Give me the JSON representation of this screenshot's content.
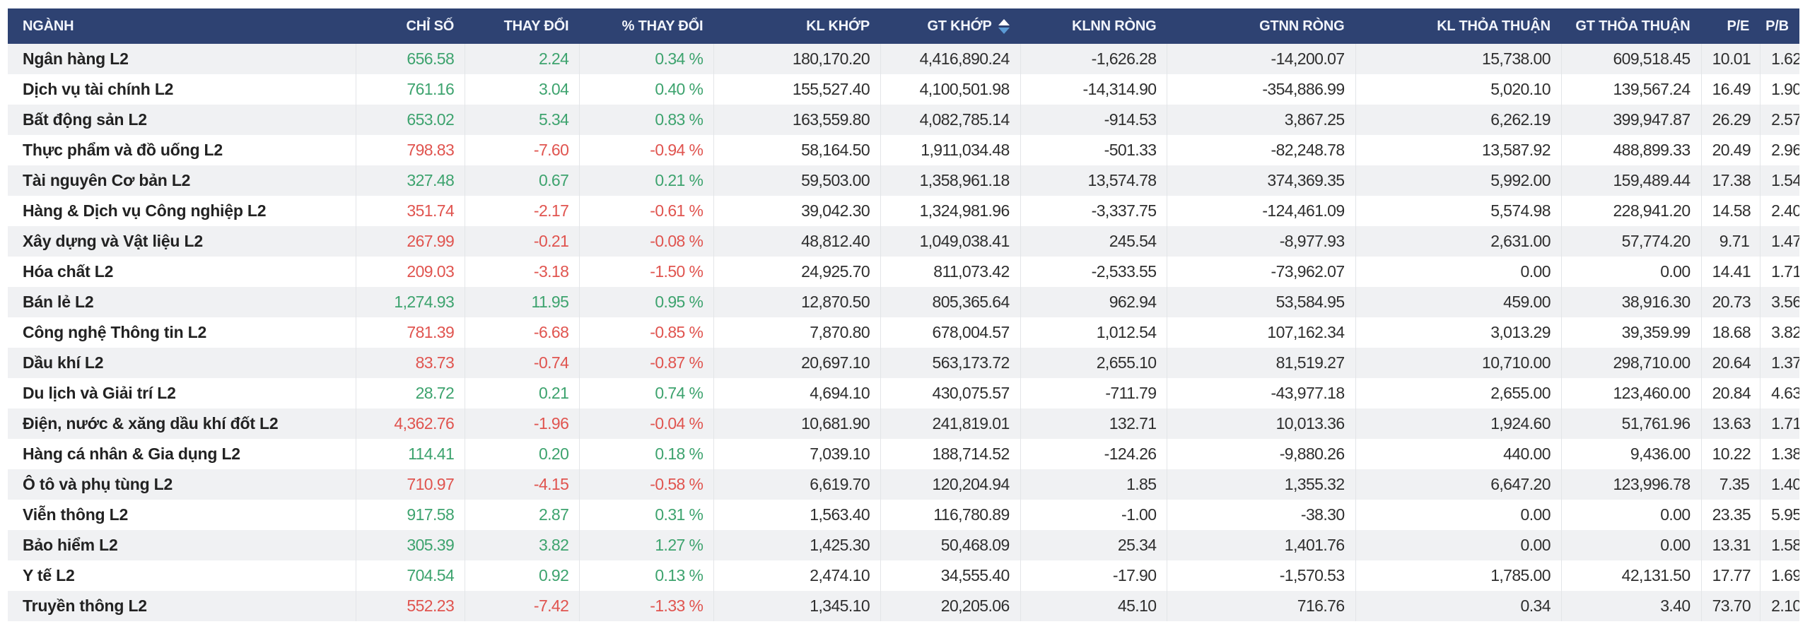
{
  "colors": {
    "header_bg": "#2e4272",
    "header_text": "#f2f5fc",
    "stripe": "#f0f1f3",
    "row_white": "#ffffff",
    "positive": "#3da36e",
    "negative": "#e0544f",
    "number_text": "#2e2e2e",
    "name_text": "#222222",
    "separator": "#e3e5e8",
    "sort_up": "#ffffff",
    "sort_down": "#5b9bd5"
  },
  "table": {
    "sort": {
      "column": "gt_khop",
      "indicator": "up-down-arrows"
    },
    "columns": [
      {
        "key": "nganh",
        "label": "NGÀNH",
        "align": "left",
        "width": 19.4,
        "type": "name"
      },
      {
        "key": "chi_so",
        "label": "CHỈ SỐ",
        "align": "right",
        "width": 6.1,
        "type": "signed"
      },
      {
        "key": "thay_doi",
        "label": "THAY ĐỔI",
        "align": "right",
        "width": 6.4,
        "type": "signed"
      },
      {
        "key": "pct_thay_doi",
        "label": "% THAY ĐỔI",
        "align": "right",
        "width": 7.5,
        "type": "signed"
      },
      {
        "key": "kl_khop",
        "label": "KL KHỚP",
        "align": "right",
        "width": 9.3,
        "type": "plain"
      },
      {
        "key": "gt_khop",
        "label": "GT KHỚP",
        "align": "right",
        "width": 7.8,
        "type": "plain",
        "sorted": true
      },
      {
        "key": "klnn_rong",
        "label": "KLNN RÒNG",
        "align": "right",
        "width": 8.2,
        "type": "plain"
      },
      {
        "key": "gtnn_rong",
        "label": "GTNN RÒNG",
        "align": "right",
        "width": 10.5,
        "type": "plain"
      },
      {
        "key": "kl_thoa_thuan",
        "label": "KL THỎA THUẬN",
        "align": "right",
        "width": 11.5,
        "type": "plain"
      },
      {
        "key": "gt_thoa_thuan",
        "label": "GT THỎA THUẬN",
        "align": "right",
        "width": 7.8,
        "type": "plain"
      },
      {
        "key": "pe",
        "label": "P/E",
        "align": "right",
        "width": 3.3,
        "type": "plain"
      },
      {
        "key": "pb",
        "label": "P/B",
        "align": "right",
        "width": 2.2,
        "type": "plain"
      }
    ],
    "rows": [
      {
        "trend": "up",
        "cells": {
          "nganh": "Ngân hàng L2",
          "chi_so": "656.58",
          "thay_doi": "2.24",
          "pct_thay_doi": "0.34 %",
          "kl_khop": "180,170.20",
          "gt_khop": "4,416,890.24",
          "klnn_rong": "-1,626.28",
          "gtnn_rong": "-14,200.07",
          "kl_thoa_thuan": "15,738.00",
          "gt_thoa_thuan": "609,518.45",
          "pe": "10.01",
          "pb": "1.62"
        }
      },
      {
        "trend": "up",
        "cells": {
          "nganh": "Dịch vụ tài chính L2",
          "chi_so": "761.16",
          "thay_doi": "3.04",
          "pct_thay_doi": "0.40 %",
          "kl_khop": "155,527.40",
          "gt_khop": "4,100,501.98",
          "klnn_rong": "-14,314.90",
          "gtnn_rong": "-354,886.99",
          "kl_thoa_thuan": "5,020.10",
          "gt_thoa_thuan": "139,567.24",
          "pe": "16.49",
          "pb": "1.90"
        }
      },
      {
        "trend": "up",
        "cells": {
          "nganh": "Bất động sản L2",
          "chi_so": "653.02",
          "thay_doi": "5.34",
          "pct_thay_doi": "0.83 %",
          "kl_khop": "163,559.80",
          "gt_khop": "4,082,785.14",
          "klnn_rong": "-914.53",
          "gtnn_rong": "3,867.25",
          "kl_thoa_thuan": "6,262.19",
          "gt_thoa_thuan": "399,947.87",
          "pe": "26.29",
          "pb": "2.57"
        }
      },
      {
        "trend": "down",
        "cells": {
          "nganh": "Thực phẩm và đồ uống L2",
          "chi_so": "798.83",
          "thay_doi": "-7.60",
          "pct_thay_doi": "-0.94 %",
          "kl_khop": "58,164.50",
          "gt_khop": "1,911,034.48",
          "klnn_rong": "-501.33",
          "gtnn_rong": "-82,248.78",
          "kl_thoa_thuan": "13,587.92",
          "gt_thoa_thuan": "488,899.33",
          "pe": "20.49",
          "pb": "2.96"
        }
      },
      {
        "trend": "up",
        "cells": {
          "nganh": "Tài nguyên Cơ bản L2",
          "chi_so": "327.48",
          "thay_doi": "0.67",
          "pct_thay_doi": "0.21 %",
          "kl_khop": "59,503.00",
          "gt_khop": "1,358,961.18",
          "klnn_rong": "13,574.78",
          "gtnn_rong": "374,369.35",
          "kl_thoa_thuan": "5,992.00",
          "gt_thoa_thuan": "159,489.44",
          "pe": "17.38",
          "pb": "1.54"
        }
      },
      {
        "trend": "down",
        "cells": {
          "nganh": "Hàng & Dịch vụ Công nghiệp L2",
          "chi_so": "351.74",
          "thay_doi": "-2.17",
          "pct_thay_doi": "-0.61 %",
          "kl_khop": "39,042.30",
          "gt_khop": "1,324,981.96",
          "klnn_rong": "-3,337.75",
          "gtnn_rong": "-124,461.09",
          "kl_thoa_thuan": "5,574.98",
          "gt_thoa_thuan": "228,941.20",
          "pe": "14.58",
          "pb": "2.40"
        }
      },
      {
        "trend": "down",
        "cells": {
          "nganh": "Xây dựng và Vật liệu L2",
          "chi_so": "267.99",
          "thay_doi": "-0.21",
          "pct_thay_doi": "-0.08 %",
          "kl_khop": "48,812.40",
          "gt_khop": "1,049,038.41",
          "klnn_rong": "245.54",
          "gtnn_rong": "-8,977.93",
          "kl_thoa_thuan": "2,631.00",
          "gt_thoa_thuan": "57,774.20",
          "pe": "9.71",
          "pb": "1.47"
        }
      },
      {
        "trend": "down",
        "cells": {
          "nganh": "Hóa chất L2",
          "chi_so": "209.03",
          "thay_doi": "-3.18",
          "pct_thay_doi": "-1.50 %",
          "kl_khop": "24,925.70",
          "gt_khop": "811,073.42",
          "klnn_rong": "-2,533.55",
          "gtnn_rong": "-73,962.07",
          "kl_thoa_thuan": "0.00",
          "gt_thoa_thuan": "0.00",
          "pe": "14.41",
          "pb": "1.71"
        }
      },
      {
        "trend": "up",
        "cells": {
          "nganh": "Bán lẻ L2",
          "chi_so": "1,274.93",
          "thay_doi": "11.95",
          "pct_thay_doi": "0.95 %",
          "kl_khop": "12,870.50",
          "gt_khop": "805,365.64",
          "klnn_rong": "962.94",
          "gtnn_rong": "53,584.95",
          "kl_thoa_thuan": "459.00",
          "gt_thoa_thuan": "38,916.30",
          "pe": "20.73",
          "pb": "3.56"
        }
      },
      {
        "trend": "down",
        "cells": {
          "nganh": "Công nghệ Thông tin L2",
          "chi_so": "781.39",
          "thay_doi": "-6.68",
          "pct_thay_doi": "-0.85 %",
          "kl_khop": "7,870.80",
          "gt_khop": "678,004.57",
          "klnn_rong": "1,012.54",
          "gtnn_rong": "107,162.34",
          "kl_thoa_thuan": "3,013.29",
          "gt_thoa_thuan": "39,359.99",
          "pe": "18.68",
          "pb": "3.82"
        }
      },
      {
        "trend": "down",
        "cells": {
          "nganh": "Dầu khí L2",
          "chi_so": "83.73",
          "thay_doi": "-0.74",
          "pct_thay_doi": "-0.87 %",
          "kl_khop": "20,697.10",
          "gt_khop": "563,173.72",
          "klnn_rong": "2,655.10",
          "gtnn_rong": "81,519.27",
          "kl_thoa_thuan": "10,710.00",
          "gt_thoa_thuan": "298,710.00",
          "pe": "20.64",
          "pb": "1.37"
        }
      },
      {
        "trend": "up",
        "cells": {
          "nganh": "Du lịch và Giải trí L2",
          "chi_so": "28.72",
          "thay_doi": "0.21",
          "pct_thay_doi": "0.74 %",
          "kl_khop": "4,694.10",
          "gt_khop": "430,075.57",
          "klnn_rong": "-711.79",
          "gtnn_rong": "-43,977.18",
          "kl_thoa_thuan": "2,655.00",
          "gt_thoa_thuan": "123,460.00",
          "pe": "20.84",
          "pb": "4.63"
        }
      },
      {
        "trend": "down",
        "cells": {
          "nganh": "Điện, nước & xăng dầu khí đốt L2",
          "chi_so": "4,362.76",
          "thay_doi": "-1.96",
          "pct_thay_doi": "-0.04 %",
          "kl_khop": "10,681.90",
          "gt_khop": "241,819.01",
          "klnn_rong": "132.71",
          "gtnn_rong": "10,013.36",
          "kl_thoa_thuan": "1,924.60",
          "gt_thoa_thuan": "51,761.96",
          "pe": "13.63",
          "pb": "1.71"
        }
      },
      {
        "trend": "up",
        "cells": {
          "nganh": "Hàng cá nhân & Gia dụng L2",
          "chi_so": "114.41",
          "thay_doi": "0.20",
          "pct_thay_doi": "0.18 %",
          "kl_khop": "7,039.10",
          "gt_khop": "188,714.52",
          "klnn_rong": "-124.26",
          "gtnn_rong": "-9,880.26",
          "kl_thoa_thuan": "440.00",
          "gt_thoa_thuan": "9,436.00",
          "pe": "10.22",
          "pb": "1.38"
        }
      },
      {
        "trend": "down",
        "cells": {
          "nganh": "Ô tô và phụ tùng L2",
          "chi_so": "710.97",
          "thay_doi": "-4.15",
          "pct_thay_doi": "-0.58 %",
          "kl_khop": "6,619.70",
          "gt_khop": "120,204.94",
          "klnn_rong": "1.85",
          "gtnn_rong": "1,355.32",
          "kl_thoa_thuan": "6,647.20",
          "gt_thoa_thuan": "123,996.78",
          "pe": "7.35",
          "pb": "1.40"
        }
      },
      {
        "trend": "up",
        "cells": {
          "nganh": "Viễn thông L2",
          "chi_so": "917.58",
          "thay_doi": "2.87",
          "pct_thay_doi": "0.31 %",
          "kl_khop": "1,563.40",
          "gt_khop": "116,780.89",
          "klnn_rong": "-1.00",
          "gtnn_rong": "-38.30",
          "kl_thoa_thuan": "0.00",
          "gt_thoa_thuan": "0.00",
          "pe": "23.35",
          "pb": "5.95"
        }
      },
      {
        "trend": "up",
        "cells": {
          "nganh": "Bảo hiểm L2",
          "chi_so": "305.39",
          "thay_doi": "3.82",
          "pct_thay_doi": "1.27 %",
          "kl_khop": "1,425.30",
          "gt_khop": "50,468.09",
          "klnn_rong": "25.34",
          "gtnn_rong": "1,401.76",
          "kl_thoa_thuan": "0.00",
          "gt_thoa_thuan": "0.00",
          "pe": "13.31",
          "pb": "1.58"
        }
      },
      {
        "trend": "up",
        "cells": {
          "nganh": "Y tế L2",
          "chi_so": "704.54",
          "thay_doi": "0.92",
          "pct_thay_doi": "0.13 %",
          "kl_khop": "2,474.10",
          "gt_khop": "34,555.40",
          "klnn_rong": "-17.90",
          "gtnn_rong": "-1,570.53",
          "kl_thoa_thuan": "1,785.00",
          "gt_thoa_thuan": "42,131.50",
          "pe": "17.77",
          "pb": "1.69"
        }
      },
      {
        "trend": "down",
        "cells": {
          "nganh": "Truyền thông L2",
          "chi_so": "552.23",
          "thay_doi": "-7.42",
          "pct_thay_doi": "-1.33 %",
          "kl_khop": "1,345.10",
          "gt_khop": "20,205.06",
          "klnn_rong": "45.10",
          "gtnn_rong": "716.76",
          "kl_thoa_thuan": "0.34",
          "gt_thoa_thuan": "3.40",
          "pe": "73.70",
          "pb": "2.10"
        }
      }
    ]
  }
}
